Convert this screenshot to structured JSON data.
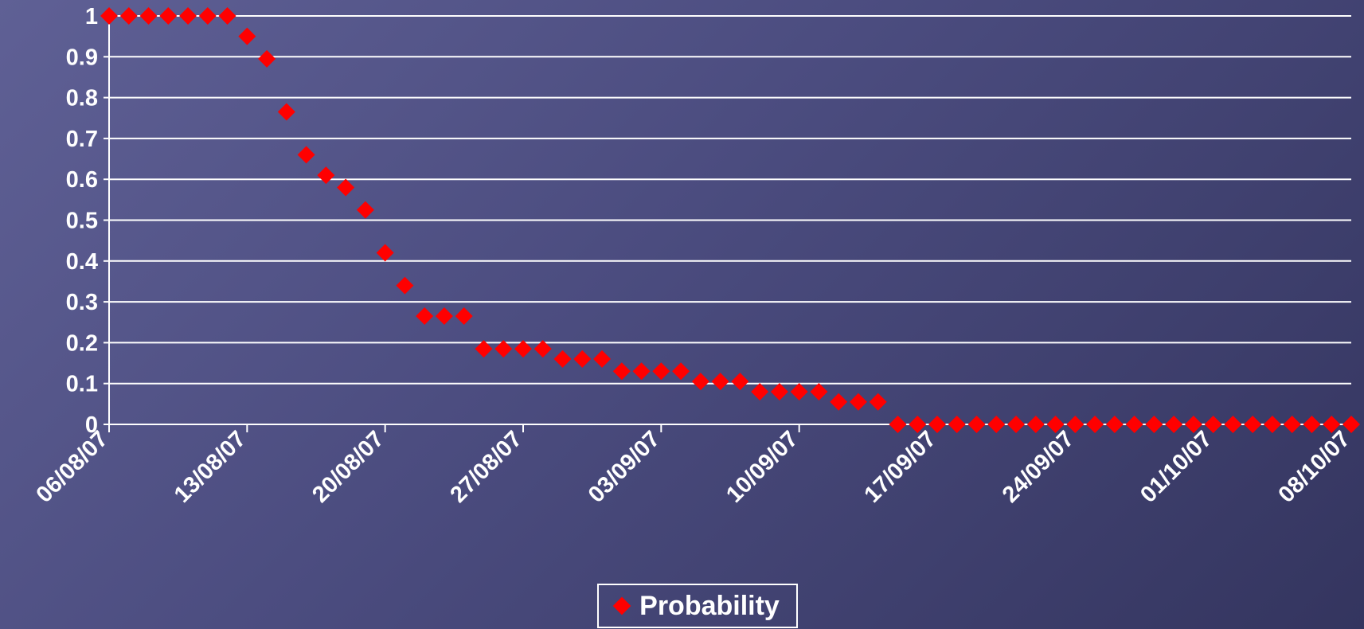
{
  "colors": {
    "background": "#4b4c7f",
    "grid": "#ffffff",
    "marker": "#ff0000",
    "text": "#ffffff"
  },
  "legend": {
    "label": "Probability",
    "marker_icon": "diamond-icon"
  },
  "chart_data": {
    "type": "scatter",
    "title": "",
    "xlabel": "",
    "ylabel": "",
    "marker": "diamond",
    "x_axis": {
      "type": "date",
      "format": "DD/MM/YY",
      "range": [
        "06/08/07",
        "08/10/07"
      ],
      "tick_labels": [
        "06/08/07",
        "13/08/07",
        "20/08/07",
        "27/08/07",
        "03/09/07",
        "10/09/07",
        "17/09/07",
        "24/09/07",
        "01/10/07",
        "08/10/07"
      ]
    },
    "y_axis": {
      "range": [
        0,
        1
      ],
      "tick_labels": [
        "0",
        "0.1",
        "0.2",
        "0.3",
        "0.4",
        "0.5",
        "0.6",
        "0.7",
        "0.8",
        "0.9",
        "1"
      ]
    },
    "grid": true,
    "legend_position": "bottom",
    "series": [
      {
        "name": "Probability",
        "x": [
          "06/08/07",
          "07/08/07",
          "08/08/07",
          "09/08/07",
          "10/08/07",
          "11/08/07",
          "12/08/07",
          "13/08/07",
          "14/08/07",
          "15/08/07",
          "16/08/07",
          "17/08/07",
          "18/08/07",
          "19/08/07",
          "20/08/07",
          "21/08/07",
          "22/08/07",
          "23/08/07",
          "24/08/07",
          "25/08/07",
          "26/08/07",
          "27/08/07",
          "28/08/07",
          "29/08/07",
          "30/08/07",
          "31/08/07",
          "01/09/07",
          "02/09/07",
          "03/09/07",
          "04/09/07",
          "05/09/07",
          "06/09/07",
          "07/09/07",
          "08/09/07",
          "09/09/07",
          "10/09/07",
          "11/09/07",
          "12/09/07",
          "13/09/07",
          "14/09/07",
          "15/09/07",
          "16/09/07",
          "17/09/07",
          "18/09/07",
          "19/09/07",
          "20/09/07",
          "21/09/07",
          "22/09/07",
          "23/09/07",
          "24/09/07",
          "25/09/07",
          "26/09/07",
          "27/09/07",
          "28/09/07",
          "29/09/07",
          "30/09/07",
          "01/10/07",
          "02/10/07",
          "03/10/07",
          "04/10/07",
          "05/10/07",
          "06/10/07",
          "07/10/07",
          "08/10/07"
        ],
        "y": [
          1,
          1,
          1,
          1,
          1,
          1,
          1,
          0.95,
          0.895,
          0.765,
          0.66,
          0.61,
          0.58,
          0.525,
          0.42,
          0.34,
          0.265,
          0.265,
          0.265,
          0.185,
          0.185,
          0.185,
          0.185,
          0.16,
          0.16,
          0.16,
          0.13,
          0.13,
          0.13,
          0.13,
          0.105,
          0.105,
          0.105,
          0.08,
          0.08,
          0.08,
          0.08,
          0.055,
          0.055,
          0.055,
          0,
          0,
          0,
          0,
          0,
          0,
          0,
          0,
          0,
          0,
          0,
          0,
          0,
          0,
          0,
          0,
          0,
          0,
          0,
          0,
          0,
          0,
          0,
          0
        ]
      }
    ]
  }
}
